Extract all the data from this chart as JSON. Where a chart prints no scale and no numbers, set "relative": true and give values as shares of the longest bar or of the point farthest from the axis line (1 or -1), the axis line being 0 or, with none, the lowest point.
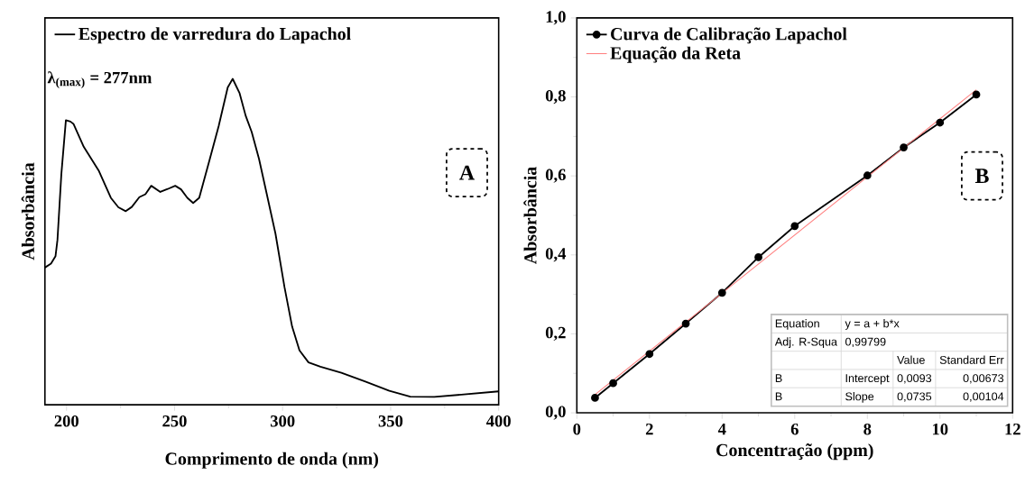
{
  "chart_data": [
    {
      "type": "line",
      "relative": true,
      "xlabel": "Comprimento de onda (nm)",
      "ylabel": "Absorbância",
      "xlim": [
        190,
        400
      ],
      "xticks": [
        200,
        250,
        300,
        350,
        400
      ],
      "legend": "top left",
      "line_style": "solid",
      "annotations": [
        "λ$_{(max)}$ = 277nm",
        "A"
      ],
      "series": [
        {
          "name": "Espectro de varredura do Lapachol",
          "color": "#000000",
          "marker": "none",
          "x": [
            190,
            192.8,
            194.9,
            195.8,
            197.6,
            199.7,
            201.8,
            203.2,
            208,
            215,
            220.5,
            224,
            227.4,
            230.2,
            233.7,
            236.5,
            239.2,
            243.4,
            246.8,
            250.3,
            253,
            255.9,
            258.6,
            261.4,
            266.3,
            270.4,
            274.6,
            276.9,
            280.1,
            282.9,
            285.7,
            289.1,
            292.6,
            296.7,
            300.9,
            304.4,
            307.8,
            312,
            317.5,
            327.2,
            338.3,
            349.4,
            359.1,
            370.2,
            382.7,
            400
          ],
          "values": [
            0.421,
            0.433,
            0.456,
            0.506,
            0.708,
            0.873,
            0.869,
            0.862,
            0.791,
            0.717,
            0.635,
            0.606,
            0.594,
            0.607,
            0.637,
            0.646,
            0.672,
            0.653,
            0.662,
            0.672,
            0.661,
            0.635,
            0.619,
            0.635,
            0.754,
            0.855,
            0.974,
            1.0,
            0.956,
            0.887,
            0.837,
            0.754,
            0.649,
            0.525,
            0.36,
            0.24,
            0.167,
            0.13,
            0.117,
            0.098,
            0.071,
            0.043,
            0.025,
            0.024,
            0.031,
            0.041
          ]
        }
      ]
    },
    {
      "type": "line",
      "xlabel": "Concentração (ppm)",
      "ylabel": "Absorbância",
      "xlim": [
        0,
        12
      ],
      "ylim": [
        0,
        1
      ],
      "xticks": [
        0,
        2,
        4,
        6,
        8,
        10,
        12
      ],
      "yticks": [
        {
          "value": 0,
          "label": "0,0"
        },
        {
          "value": 0.2,
          "label": "0,2"
        },
        {
          "value": 0.4,
          "label": "0,4"
        },
        {
          "value": 0.6,
          "label": "0,6"
        },
        {
          "value": 0.8,
          "label": "0,8"
        },
        {
          "value": 1,
          "label": "1,0"
        }
      ],
      "legend": "top left",
      "line_style": "solid",
      "annotations": [
        "B",
        "Equation",
        "y = a + b*x",
        "Adj. R-Squa",
        "0,99799",
        "Value",
        "Standard Err",
        "B",
        "Intercept",
        "0,0093",
        "0,00673",
        "B",
        "Slope",
        "0,0735",
        "0,00104"
      ],
      "series": [
        {
          "name": "Curva de Calibração Lapachol",
          "color": "#000000",
          "marker": "circle",
          "x": [
            0.5,
            1,
            2,
            3,
            4,
            5,
            6,
            8,
            9,
            10,
            11
          ],
          "values": [
            0.038,
            0.075,
            0.149,
            0.226,
            0.304,
            0.394,
            0.473,
            0.601,
            0.672,
            0.735,
            0.806
          ]
        },
        {
          "name": "Equação da Reta",
          "color": "#ff8080",
          "marker": "none",
          "x": [
            0.5,
            11
          ],
          "values": [
            0.046,
            0.818
          ]
        }
      ]
    }
  ]
}
